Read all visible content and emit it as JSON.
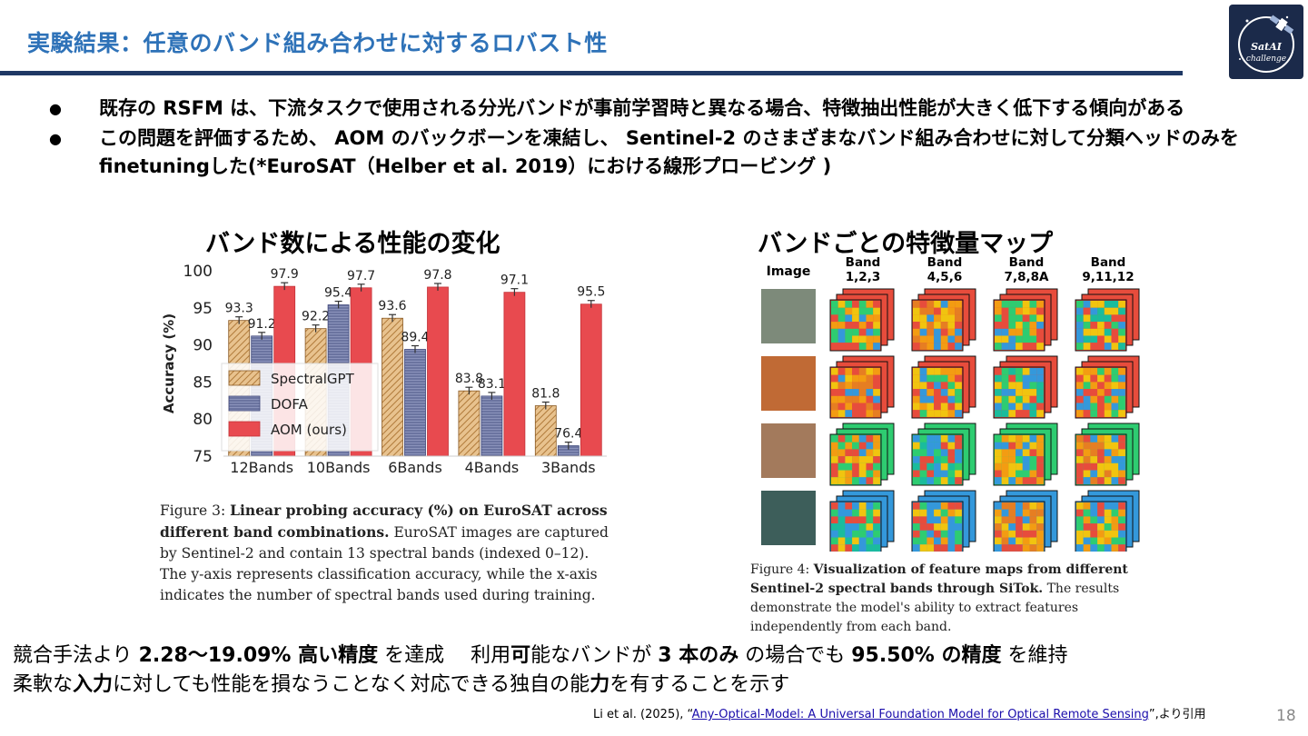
{
  "slide": {
    "title": "実験結果：任意のバンド組み合わせに対するロバスト性",
    "logo_text": "SatAI Challenge",
    "page_number": "18"
  },
  "bullets": [
    {
      "marker": "●",
      "text": "既存の RSFM は、下流タスクで使用される分光バンドが事前学習時と異なる場合、特徴抽出性能が大きく低下する傾向がある"
    },
    {
      "marker": "●",
      "text": "この問題を評価するため、 AOM のバックボーンを凍結し、 Sentinel-2 のさまざまなバンド組み合わせに対して分類ヘッドのみを finetuningした(*EuroSAT（Helber et al. 2019）における線形プロービング )"
    }
  ],
  "left_section": {
    "heading": "バンド数による性能の変化",
    "caption_lead": "Figure 3: ",
    "caption_bold": "Linear probing accuracy (%) on EuroSAT across different band combinations.",
    "caption_rest": " EuroSAT images are captured by Sentinel-2 and contain 13 spectral bands (indexed 0–12). The y-axis represents classification accuracy, while the x-axis indicates the number of spectral bands used during training."
  },
  "right_section": {
    "heading": "バンドごとの特徴量マップ",
    "image_col_label": "Image",
    "band_labels": [
      [
        "Band",
        "1,2,3"
      ],
      [
        "Band",
        "4,5,6"
      ],
      [
        "Band",
        "7,8,8A"
      ],
      [
        "Band",
        "9,11,12"
      ]
    ],
    "caption_lead": "Figure 4: ",
    "caption_bold": "Visualization of feature maps from different Sentinel-2 spectral bands through SiTok.",
    "caption_rest": " The results demonstrate the model's ability to extract features independently from each band."
  },
  "summary": {
    "line1_a": "競合手法より ",
    "line1_b": "2.28〜19.09% 高い精度",
    "line1_c": " を達成　 利用",
    "line1_d": "可",
    "line1_e": "能なバンドが ",
    "line1_f": "3 本のみ",
    "line1_g": " の場合でも ",
    "line1_h": "95.50% の精度",
    "line1_i": " を維持",
    "line2_a": "柔軟な",
    "line2_b": "入力",
    "line2_c": "に対しても性能を損なうことなく対応できる独自の能",
    "line2_d": "力",
    "line2_e": "を有することを示す"
  },
  "citation": {
    "prefix": "Li et al. (2025), “",
    "link_text": "Any-Optical-Model: A Universal Foundation Model for Optical Remote Sensing",
    "suffix": "”,より引用"
  },
  "chart_data": {
    "type": "bar",
    "categories": [
      "12Bands",
      "10Bands",
      "6Bands",
      "4Bands",
      "3Bands"
    ],
    "ylabel": "Accuracy (%)",
    "ylim": [
      75,
      100
    ],
    "yticks": [
      75,
      80,
      85,
      90,
      95,
      100
    ],
    "legend_position": "left",
    "series": [
      {
        "name": "SpectralGPT",
        "values": [
          93.3,
          92.2,
          93.6,
          83.8,
          81.8
        ],
        "color": "#d2a36b"
      },
      {
        "name": "DOFA",
        "values": [
          91.2,
          95.4,
          89.4,
          83.1,
          76.4
        ],
        "color": "#6f7aa6"
      },
      {
        "name": "AOM (ours)",
        "values": [
          97.9,
          97.7,
          97.8,
          97.1,
          95.5
        ],
        "color": "#e84a4f"
      }
    ]
  }
}
